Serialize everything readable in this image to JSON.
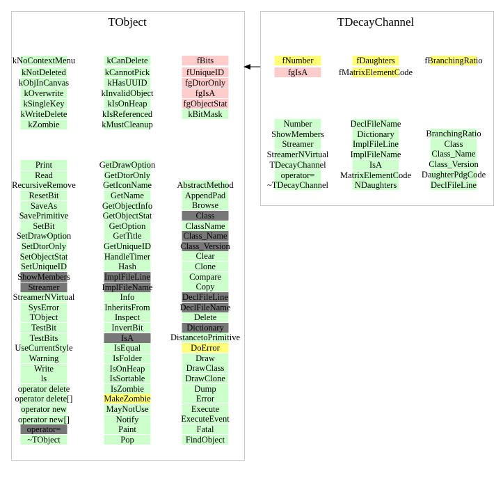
{
  "colors": {
    "inherited": "#ccffcc",
    "data": "#ffcccc",
    "yellow": "#ffff77",
    "dark": "#777777",
    "none": "transparent",
    "border": "#c8c8c8"
  },
  "classes": [
    {
      "title": "TObject",
      "members": [
        [
          {
            "label": "kNoContextMenu",
            "style": "inherited"
          },
          {
            "label": "kNotDeleted",
            "style": "inherited"
          },
          {
            "label": "kObjInCanvas",
            "style": "inherited"
          },
          {
            "label": "kOverwrite",
            "style": "inherited"
          },
          {
            "label": "kSingleKey",
            "style": "inherited"
          },
          {
            "label": "kWriteDelete",
            "style": "inherited"
          },
          {
            "label": "kZombie",
            "style": "inherited"
          }
        ],
        [
          {
            "label": "kCanDelete",
            "style": "inherited"
          },
          {
            "label": "kCannotPick",
            "style": "inherited"
          },
          {
            "label": "kHasUUID",
            "style": "inherited"
          },
          {
            "label": "kInvalidObject",
            "style": "inherited"
          },
          {
            "label": "kIsOnHeap",
            "style": "inherited"
          },
          {
            "label": "kIsReferenced",
            "style": "inherited"
          },
          {
            "label": "kMustCleanup",
            "style": "inherited"
          }
        ],
        [
          {
            "label": "fBits",
            "style": "data"
          },
          {
            "label": "fUniqueID",
            "style": "data"
          },
          {
            "label": "fgDtorOnly",
            "style": "data"
          },
          {
            "label": "fgIsA",
            "style": "data"
          },
          {
            "label": "fgObjectStat",
            "style": "data"
          },
          {
            "label": "kBitMask",
            "style": "inherited"
          }
        ]
      ],
      "methods": [
        [
          {
            "label": "Print",
            "style": "inherited"
          },
          {
            "label": "Read",
            "style": "inherited"
          },
          {
            "label": "RecursiveRemove",
            "style": "inherited"
          },
          {
            "label": "ResetBit",
            "style": "inherited"
          },
          {
            "label": "SaveAs",
            "style": "inherited"
          },
          {
            "label": "SavePrimitive",
            "style": "inherited"
          },
          {
            "label": "SetBit",
            "style": "inherited"
          },
          {
            "label": "SetDrawOption",
            "style": "inherited"
          },
          {
            "label": "SetDtorOnly",
            "style": "inherited"
          },
          {
            "label": "SetObjectStat",
            "style": "inherited"
          },
          {
            "label": "SetUniqueID",
            "style": "inherited"
          },
          {
            "label": "ShowMembers",
            "style": "dark"
          },
          {
            "label": "Streamer",
            "style": "dark"
          },
          {
            "label": "StreamerNVirtual",
            "style": "inherited"
          },
          {
            "label": "SysError",
            "style": "inherited"
          },
          {
            "label": "TObject",
            "style": "inherited"
          },
          {
            "label": "TestBit",
            "style": "inherited"
          },
          {
            "label": "TestBits",
            "style": "inherited"
          },
          {
            "label": "UseCurrentStyle",
            "style": "inherited"
          },
          {
            "label": "Warning",
            "style": "inherited"
          },
          {
            "label": "Write",
            "style": "inherited"
          },
          {
            "label": "ls",
            "style": "inherited"
          },
          {
            "label": "operator delete",
            "style": "inherited"
          },
          {
            "label": "operator delete[]",
            "style": "inherited"
          },
          {
            "label": "operator new",
            "style": "inherited"
          },
          {
            "label": "operator new[]",
            "style": "inherited"
          },
          {
            "label": "operator=",
            "style": "dark"
          },
          {
            "label": "~TObject",
            "style": "inherited"
          }
        ],
        [
          {
            "label": "GetDrawOption",
            "style": "inherited"
          },
          {
            "label": "GetDtorOnly",
            "style": "inherited"
          },
          {
            "label": "GetIconName",
            "style": "inherited"
          },
          {
            "label": "GetName",
            "style": "inherited"
          },
          {
            "label": "GetObjectInfo",
            "style": "inherited"
          },
          {
            "label": "GetObjectStat",
            "style": "inherited"
          },
          {
            "label": "GetOption",
            "style": "inherited"
          },
          {
            "label": "GetTitle",
            "style": "inherited"
          },
          {
            "label": "GetUniqueID",
            "style": "inherited"
          },
          {
            "label": "HandleTimer",
            "style": "inherited"
          },
          {
            "label": "Hash",
            "style": "inherited"
          },
          {
            "label": "ImplFileLine",
            "style": "dark"
          },
          {
            "label": "ImplFileName",
            "style": "dark"
          },
          {
            "label": "Info",
            "style": "inherited"
          },
          {
            "label": "InheritsFrom",
            "style": "inherited"
          },
          {
            "label": "Inspect",
            "style": "inherited"
          },
          {
            "label": "InvertBit",
            "style": "inherited"
          },
          {
            "label": "IsA",
            "style": "dark"
          },
          {
            "label": "IsEqual",
            "style": "inherited"
          },
          {
            "label": "IsFolder",
            "style": "inherited"
          },
          {
            "label": "IsOnHeap",
            "style": "inherited"
          },
          {
            "label": "IsSortable",
            "style": "inherited"
          },
          {
            "label": "IsZombie",
            "style": "inherited"
          },
          {
            "label": "MakeZombie",
            "style": "yellow"
          },
          {
            "label": "MayNotUse",
            "style": "inherited"
          },
          {
            "label": "Notify",
            "style": "inherited"
          },
          {
            "label": "Paint",
            "style": "inherited"
          },
          {
            "label": "Pop",
            "style": "inherited"
          }
        ],
        [
          {
            "label": "AbstractMethod",
            "style": "inherited"
          },
          {
            "label": "AppendPad",
            "style": "inherited"
          },
          {
            "label": "Browse",
            "style": "inherited"
          },
          {
            "label": "Class",
            "style": "dark"
          },
          {
            "label": "ClassName",
            "style": "inherited"
          },
          {
            "label": "Class_Name",
            "style": "dark"
          },
          {
            "label": "Class_Version",
            "style": "dark"
          },
          {
            "label": "Clear",
            "style": "inherited"
          },
          {
            "label": "Clone",
            "style": "inherited"
          },
          {
            "label": "Compare",
            "style": "inherited"
          },
          {
            "label": "Copy",
            "style": "inherited"
          },
          {
            "label": "DeclFileLine",
            "style": "dark"
          },
          {
            "label": "DeclFileName",
            "style": "dark"
          },
          {
            "label": "Delete",
            "style": "inherited"
          },
          {
            "label": "Dictionary",
            "style": "dark"
          },
          {
            "label": "DistancetoPrimitive",
            "style": "inherited"
          },
          {
            "label": "DoError",
            "style": "yellow"
          },
          {
            "label": "Draw",
            "style": "inherited"
          },
          {
            "label": "DrawClass",
            "style": "inherited"
          },
          {
            "label": "DrawClone",
            "style": "inherited"
          },
          {
            "label": "Dump",
            "style": "inherited"
          },
          {
            "label": "Error",
            "style": "inherited"
          },
          {
            "label": "Execute",
            "style": "inherited"
          },
          {
            "label": "ExecuteEvent",
            "style": "inherited"
          },
          {
            "label": "Fatal",
            "style": "inherited"
          },
          {
            "label": "FindObject",
            "style": "inherited"
          }
        ]
      ]
    },
    {
      "title": "TDecayChannel",
      "members": [
        [
          {
            "label": "fNumber",
            "style": "yellow"
          },
          {
            "label": "fgIsA",
            "style": "data"
          }
        ],
        [
          {
            "label": "fDaughters",
            "style": "yellow"
          },
          {
            "label": "fMatrixElementCode",
            "style": "yellow"
          }
        ],
        [
          {
            "label": "fBranchingRatio",
            "style": "yellow"
          }
        ]
      ],
      "methods": [
        [
          {
            "label": "Number",
            "style": "inherited"
          },
          {
            "label": "ShowMembers",
            "style": "inherited"
          },
          {
            "label": "Streamer",
            "style": "inherited"
          },
          {
            "label": "StreamerNVirtual",
            "style": "inherited"
          },
          {
            "label": "TDecayChannel",
            "style": "inherited"
          },
          {
            "label": "operator=",
            "style": "inherited"
          },
          {
            "label": "~TDecayChannel",
            "style": "inherited"
          }
        ],
        [
          {
            "label": "DeclFileName",
            "style": "inherited"
          },
          {
            "label": "Dictionary",
            "style": "inherited"
          },
          {
            "label": "ImplFileLine",
            "style": "inherited"
          },
          {
            "label": "ImplFileName",
            "style": "inherited"
          },
          {
            "label": "IsA",
            "style": "inherited"
          },
          {
            "label": "MatrixElementCode",
            "style": "inherited"
          },
          {
            "label": "NDaughters",
            "style": "inherited"
          }
        ],
        [
          {
            "label": "BranchingRatio",
            "style": "inherited"
          },
          {
            "label": "Class",
            "style": "inherited"
          },
          {
            "label": "Class_Name",
            "style": "inherited"
          },
          {
            "label": "Class_Version",
            "style": "inherited"
          },
          {
            "label": "DaughterPdgCode",
            "style": "inherited"
          },
          {
            "label": "DeclFileLine",
            "style": "inherited"
          }
        ]
      ]
    }
  ]
}
